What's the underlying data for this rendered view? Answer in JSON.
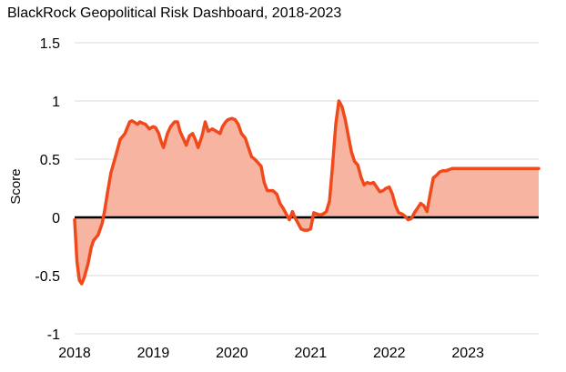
{
  "chart_data": {
    "type": "area",
    "title": "BlackRock Geopolitical Risk Dashboard, 2018-2023",
    "xlabel": "",
    "ylabel": "Score",
    "xlim": [
      2018,
      2023.9
    ],
    "ylim": [
      -1,
      1.5
    ],
    "x_ticks": [
      "2018",
      "2019",
      "2020",
      "2021",
      "2022",
      "2023"
    ],
    "y_ticks": [
      "1.5",
      "1",
      "0.5",
      "0",
      "-0.5",
      "-1"
    ],
    "grid": "horizontal",
    "baseline": 0,
    "colors": {
      "line": "#f04a1c",
      "fill": "#f6b4a1",
      "zero_line": "#000000",
      "grid": "#d9d9d9"
    },
    "series": [
      {
        "x": [
          2018.0,
          2018.03,
          2018.06,
          2018.09,
          2018.12,
          2018.17,
          2018.21,
          2018.24,
          2018.3,
          2018.35,
          2018.38,
          2018.42,
          2018.46,
          2018.52,
          2018.58,
          2018.64,
          2018.7,
          2018.73,
          2018.8,
          2018.83,
          2018.86,
          2018.9,
          2018.95,
          2019.0,
          2019.03,
          2019.07,
          2019.1,
          2019.13,
          2019.18,
          2019.22,
          2019.27,
          2019.31,
          2019.34,
          2019.38,
          2019.42,
          2019.46,
          2019.5,
          2019.54,
          2019.57,
          2019.62,
          2019.66,
          2019.7,
          2019.75,
          2019.8,
          2019.85,
          2019.88,
          2019.92,
          2019.95,
          2020.0,
          2020.04,
          2020.08,
          2020.12,
          2020.17,
          2020.21,
          2020.25,
          2020.29,
          2020.33,
          2020.37,
          2020.41,
          2020.45,
          2020.48,
          2020.52,
          2020.57,
          2020.61,
          2020.65,
          2020.69,
          2020.73,
          2020.77,
          2020.8,
          2020.84,
          2020.88,
          2020.92,
          2020.96,
          2021.0,
          2021.04,
          2021.08,
          2021.12,
          2021.16,
          2021.2,
          2021.24,
          2021.28,
          2021.32,
          2021.36,
          2021.4,
          2021.44,
          2021.48,
          2021.52,
          2021.56,
          2021.6,
          2021.64,
          2021.68,
          2021.72,
          2021.76,
          2021.8,
          2021.84,
          2021.88,
          2021.92,
          2021.96,
          2022.0,
          2022.04,
          2022.08,
          2022.12,
          2022.16,
          2022.2,
          2022.24,
          2022.28,
          2022.32,
          2022.36,
          2022.4,
          2022.44,
          2022.48,
          2022.52,
          2022.56,
          2022.6,
          2022.64,
          2022.68,
          2022.72,
          2022.76,
          2022.8,
          2022.84,
          2022.88,
          2022.92,
          2022.96,
          2023.0,
          2023.04,
          2023.08,
          2023.12,
          2023.16,
          2023.2,
          2023.24,
          2023.28,
          2023.32,
          2023.36,
          2023.4,
          2023.44,
          2023.48,
          2023.52,
          2023.56,
          2023.6,
          2023.64,
          2023.68,
          2023.72,
          2023.76,
          2023.8,
          2023.85,
          2023.9
        ],
        "y": [
          -0.02,
          -0.38,
          -0.54,
          -0.57,
          -0.52,
          -0.4,
          -0.26,
          -0.2,
          -0.15,
          -0.05,
          0.05,
          0.22,
          0.38,
          0.52,
          0.67,
          0.72,
          0.82,
          0.83,
          0.8,
          0.82,
          0.81,
          0.8,
          0.76,
          0.78,
          0.77,
          0.72,
          0.65,
          0.6,
          0.72,
          0.78,
          0.82,
          0.82,
          0.74,
          0.68,
          0.62,
          0.7,
          0.72,
          0.66,
          0.6,
          0.7,
          0.82,
          0.74,
          0.76,
          0.74,
          0.72,
          0.78,
          0.82,
          0.84,
          0.85,
          0.84,
          0.8,
          0.72,
          0.68,
          0.6,
          0.52,
          0.5,
          0.47,
          0.44,
          0.3,
          0.23,
          0.23,
          0.23,
          0.2,
          0.12,
          0.08,
          0.03,
          -0.02,
          0.05,
          0.0,
          -0.05,
          -0.1,
          -0.11,
          -0.11,
          -0.1,
          0.04,
          0.03,
          0.02,
          0.03,
          0.05,
          0.14,
          0.45,
          0.8,
          1.0,
          0.95,
          0.84,
          0.7,
          0.56,
          0.48,
          0.45,
          0.35,
          0.28,
          0.3,
          0.29,
          0.3,
          0.26,
          0.22,
          0.23,
          0.25,
          0.26,
          0.2,
          0.1,
          0.04,
          0.03,
          0.01,
          -0.02,
          -0.01,
          0.04,
          0.08,
          0.12,
          0.1,
          0.05,
          0.2,
          0.34,
          0.36,
          0.39,
          0.4,
          0.4,
          0.41,
          0.42,
          0.42,
          0.42,
          0.42,
          0.42,
          0.42,
          0.42,
          0.42,
          0.42,
          0.42,
          0.42,
          0.42,
          0.42,
          0.42,
          0.42,
          0.42,
          0.42,
          0.42,
          0.42,
          0.42,
          0.42,
          0.42,
          0.42,
          0.42,
          0.42,
          0.42,
          0.42,
          0.42
        ]
      }
    ]
  }
}
